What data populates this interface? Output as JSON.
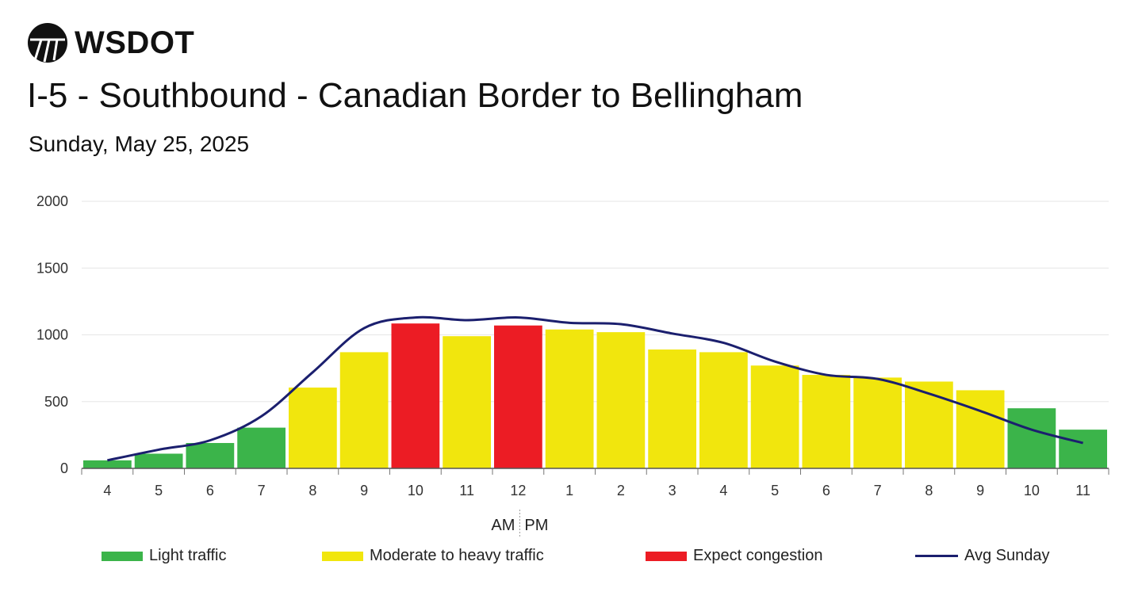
{
  "logo": {
    "text": "WSDOT",
    "icon": "wsdot-road-logo-icon"
  },
  "colors": {
    "light": "#3bb44a",
    "moderate": "#f1e60d",
    "congestion": "#ec1c24",
    "avg_line": "#1b1f6e",
    "grid": "#e6e6e6"
  },
  "chart_data": {
    "type": "bar",
    "title": "I-5 - Southbound - Canadian Border to Bellingham",
    "subtitle": "Sunday, May 25, 2025",
    "categories": [
      "4",
      "5",
      "6",
      "7",
      "8",
      "9",
      "10",
      "11",
      "12",
      "1",
      "2",
      "3",
      "4",
      "5",
      "6",
      "7",
      "8",
      "9",
      "10",
      "11"
    ],
    "values": [
      60,
      110,
      190,
      305,
      605,
      870,
      1085,
      990,
      1070,
      1040,
      1020,
      890,
      870,
      770,
      700,
      680,
      650,
      585,
      450,
      290
    ],
    "levels": [
      "light",
      "light",
      "light",
      "light",
      "moderate",
      "moderate",
      "congestion",
      "moderate",
      "congestion",
      "moderate",
      "moderate",
      "moderate",
      "moderate",
      "moderate",
      "moderate",
      "moderate",
      "moderate",
      "moderate",
      "light",
      "light"
    ],
    "series": [
      {
        "name": "Avg Sunday",
        "type": "line",
        "values": [
          60,
          140,
          210,
          390,
          720,
          1050,
          1130,
          1110,
          1130,
          1090,
          1080,
          1010,
          940,
          800,
          700,
          670,
          560,
          430,
          290,
          190
        ]
      }
    ],
    "ylim": [
      0,
      2000
    ],
    "yticks": [
      0,
      500,
      1000,
      1500,
      2000
    ],
    "xlabel": "",
    "ylabel": "",
    "am_pm_divider": {
      "am": "AM",
      "pm": "PM"
    },
    "grid": true,
    "legend_position": "bottom"
  },
  "legend": [
    {
      "label": "Light traffic",
      "key": "light"
    },
    {
      "label": "Moderate to heavy traffic",
      "key": "moderate"
    },
    {
      "label": "Expect congestion",
      "key": "congestion"
    },
    {
      "label": "Avg Sunday",
      "key": "avg_line"
    }
  ]
}
